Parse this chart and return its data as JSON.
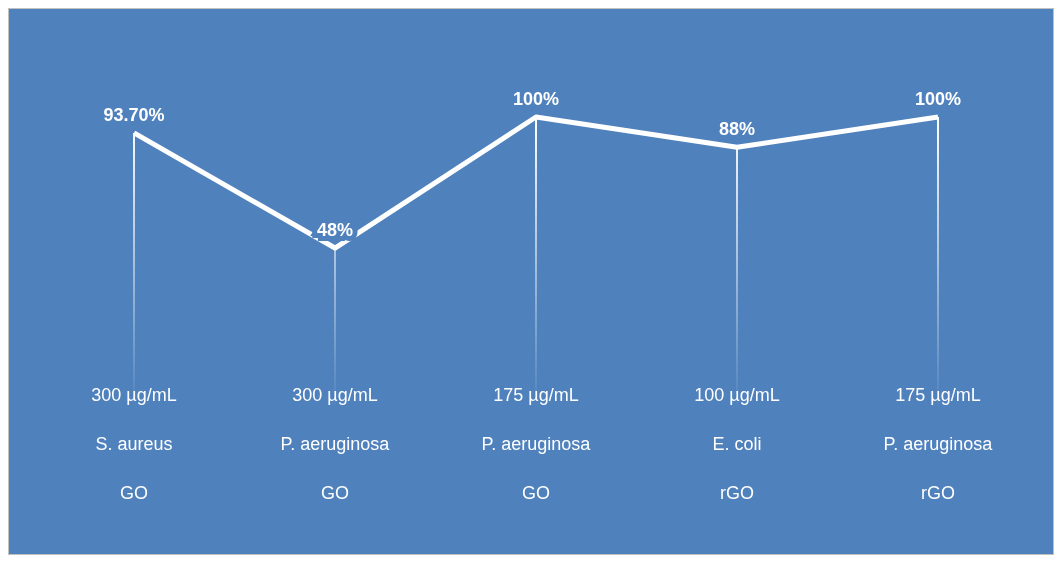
{
  "chart_data": {
    "type": "line",
    "categories": [
      "300 µg/mL\nS. aureus\nGO",
      "300 µg/mL\nP. aeruginosa\nGO",
      "175 µg/mL\nP. aeruginosa\nGO",
      "100 µg/mL\nE. coli\nrGO",
      "175 µg/mL\nP. aeruginosa\nrGO"
    ],
    "values": [
      93.7,
      48,
      100,
      88,
      100
    ],
    "value_labels": [
      "93.70%",
      "48%",
      "100%",
      "88%",
      "100%"
    ],
    "color": "#ffffff",
    "grid": "x"
  }
}
